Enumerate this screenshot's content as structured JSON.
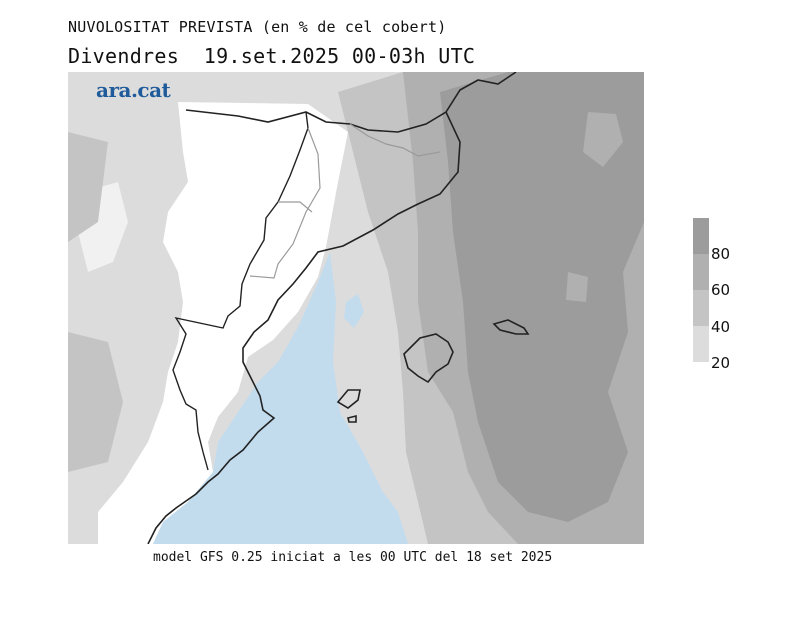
{
  "title": {
    "line1": "NUVOLOSITAT PREVISTA (en % de cel cobert)",
    "line2": "Divendres  19.set.2025 00-03h UTC"
  },
  "logo": {
    "text": "ara.cat",
    "color": "#1f5b9a"
  },
  "footer": "model GFS 0.25 iniciat a les 00 UTC del 18 set 2025",
  "legend": {
    "unit": "%",
    "bins": [
      {
        "from": 20,
        "to": 40,
        "color": "#dcdcdc"
      },
      {
        "from": 40,
        "to": 60,
        "color": "#c4c4c4"
      },
      {
        "from": 60,
        "to": 80,
        "color": "#b0b0b0"
      },
      {
        "from": 80,
        "to": 100,
        "color": "#9c9c9c"
      }
    ],
    "labels": [
      "20",
      "40",
      "60",
      "80"
    ]
  },
  "colors": {
    "clear_land": "#ffffff",
    "clear_sea": "#c2dcee",
    "coastline": "#222222",
    "borders": "#9a9a9a"
  }
}
